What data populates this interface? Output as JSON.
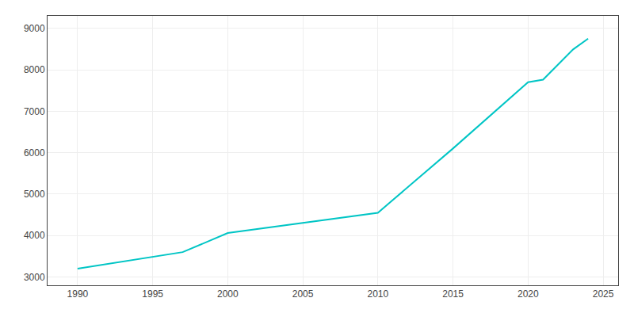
{
  "chart_data": {
    "type": "line",
    "x": [
      1990,
      1997,
      2000,
      2005,
      2010,
      2015,
      2020,
      2021,
      2023,
      2024
    ],
    "values": [
      3200,
      3600,
      4060,
      4310,
      4550,
      6100,
      7700,
      7760,
      8490,
      8750
    ],
    "color": "#00c5c5",
    "xlim": [
      1988,
      2026
    ],
    "ylim": [
      2800,
      9300
    ],
    "xticks": [
      1990,
      1995,
      2000,
      2005,
      2010,
      2015,
      2020,
      2025
    ],
    "yticks": [
      3000,
      4000,
      5000,
      6000,
      7000,
      8000,
      9000
    ],
    "grid": true
  }
}
